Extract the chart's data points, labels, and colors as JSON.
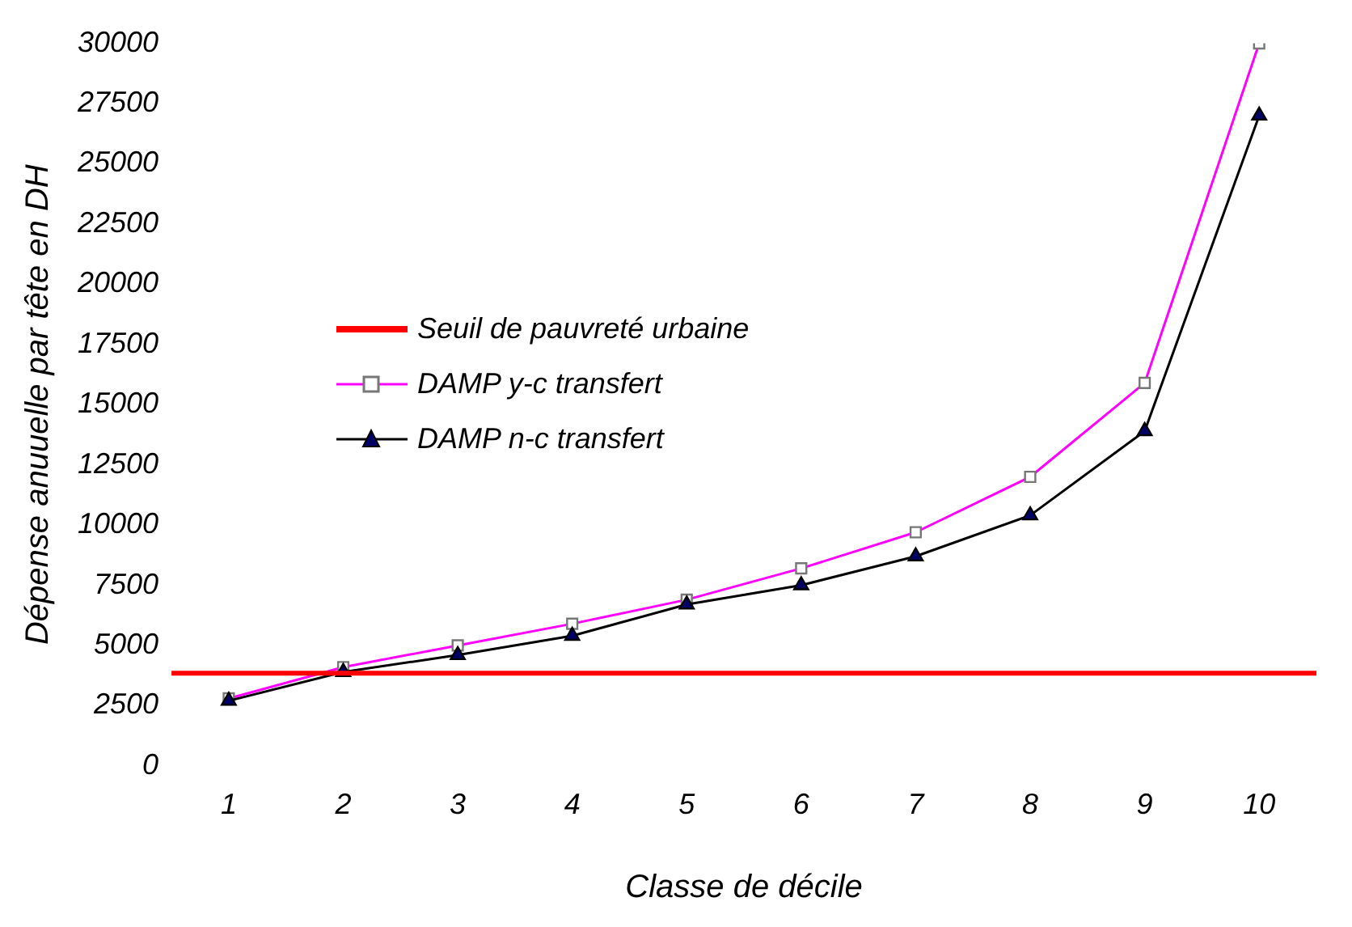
{
  "chart_data": {
    "type": "line",
    "xlabel": "Classe de décile",
    "ylabel": "Dépense anuuelle par tête en DH",
    "categories": [
      "1",
      "2",
      "3",
      "4",
      "5",
      "6",
      "7",
      "8",
      "9",
      "10"
    ],
    "series": [
      {
        "name": "DAMP y-c transfert",
        "color": "#ff00ff",
        "marker": "square",
        "values": [
          2800,
          4100,
          5000,
          5900,
          6900,
          8200,
          9700,
          12000,
          15900,
          30000
        ]
      },
      {
        "name": "DAMP n-c transfert",
        "color": "#000000",
        "marker": "triangle",
        "values": [
          2700,
          3900,
          4600,
          5400,
          6700,
          7500,
          8700,
          10400,
          13900,
          27000
        ]
      }
    ],
    "ref_lines": [
      {
        "axis": "y",
        "value": 3850,
        "label": "Seuil de pauvreté urbaine",
        "color": "#ff0000"
      }
    ],
    "ylim": [
      0,
      30000
    ],
    "yticks": [
      0,
      2500,
      5000,
      7500,
      10000,
      12500,
      15000,
      17500,
      20000,
      22500,
      25000,
      27500,
      30000
    ],
    "grid": false,
    "legend": "center left"
  }
}
